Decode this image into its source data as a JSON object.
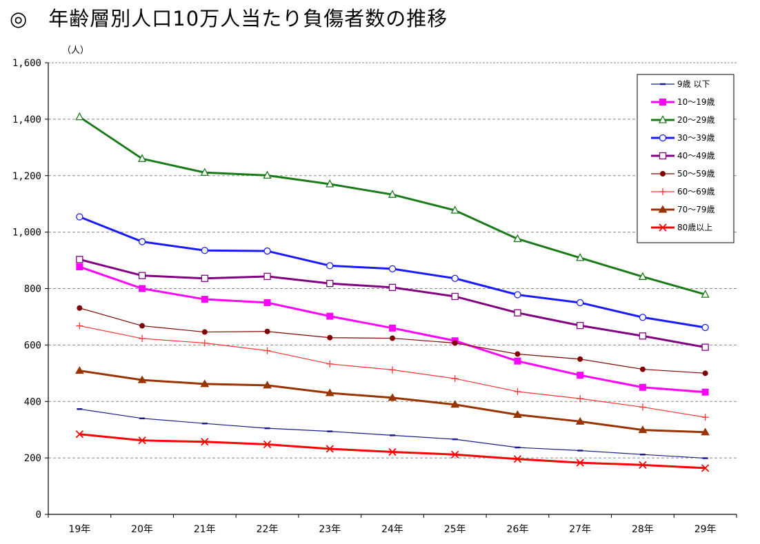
{
  "title": "◎　年齢層別人口10万人当たり負傷者数の推移",
  "chart_data": {
    "type": "line",
    "title": "年齢層別人口10万人当たり負傷者数の推移",
    "ylabel": "（人）",
    "xlabel": "",
    "ylim": [
      0,
      1600
    ],
    "yticks": [
      0,
      200,
      400,
      600,
      800,
      1000,
      1200,
      1400,
      1600
    ],
    "ytick_labels": [
      "0",
      "200",
      "400",
      "600",
      "800",
      "1,000",
      "1,200",
      "1,400",
      "1,600"
    ],
    "grid": true,
    "legend_position": "top-right",
    "categories": [
      "19年",
      "20年",
      "21年",
      "22年",
      "23年",
      "24年",
      "25年",
      "26年",
      "27年",
      "28年",
      "29年"
    ],
    "series": [
      {
        "name": "9歳 以下",
        "color": "#1a1a8c",
        "marker": "dash",
        "line": "thin",
        "values": [
          373,
          340,
          322,
          305,
          294,
          280,
          266,
          237,
          226,
          212,
          199
        ]
      },
      {
        "name": "10～19歳",
        "color": "#ff00ff",
        "marker": "square-filled",
        "line": "thick",
        "values": [
          877,
          800,
          762,
          750,
          702,
          660,
          615,
          543,
          493,
          450,
          433
        ]
      },
      {
        "name": "20～29歳",
        "color": "#1a7a1a",
        "marker": "triangle-open",
        "line": "thick",
        "values": [
          1408,
          1260,
          1211,
          1201,
          1170,
          1133,
          1077,
          976,
          909,
          842,
          779
        ]
      },
      {
        "name": "30～39歳",
        "color": "#1a1aff",
        "marker": "circle-open",
        "line": "thick",
        "values": [
          1054,
          966,
          935,
          933,
          881,
          870,
          836,
          778,
          750,
          698,
          662
        ]
      },
      {
        "name": "40～49歳",
        "color": "#800080",
        "marker": "square-open",
        "line": "thick",
        "values": [
          903,
          846,
          836,
          843,
          818,
          804,
          772,
          714,
          669,
          632,
          592
        ]
      },
      {
        "name": "50～59歳",
        "color": "#800000",
        "marker": "circle-filled",
        "line": "thin",
        "values": [
          731,
          668,
          646,
          648,
          626,
          624,
          607,
          568,
          550,
          514,
          500
        ]
      },
      {
        "name": "60～69歳",
        "color": "#ff3333",
        "marker": "plus",
        "line": "thin",
        "values": [
          668,
          623,
          607,
          580,
          533,
          512,
          481,
          435,
          410,
          380,
          344
        ]
      },
      {
        "name": "70～79歳",
        "color": "#993300",
        "marker": "triangle-filled",
        "line": "thick",
        "values": [
          509,
          476,
          462,
          457,
          430,
          413,
          389,
          353,
          329,
          299,
          291
        ]
      },
      {
        "name": "80歳以上",
        "color": "#ff0000",
        "marker": "x",
        "line": "thick",
        "values": [
          284,
          262,
          257,
          248,
          232,
          221,
          212,
          196,
          183,
          175,
          164
        ]
      }
    ]
  }
}
